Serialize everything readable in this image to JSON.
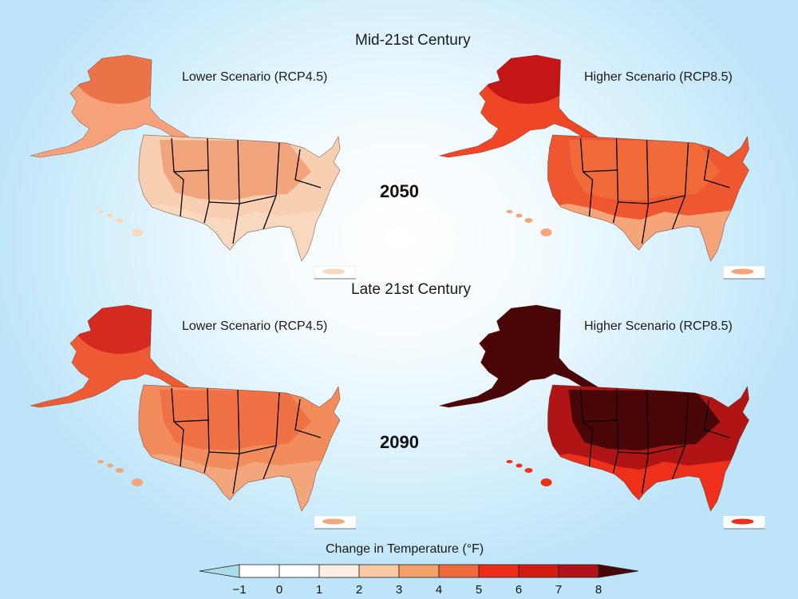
{
  "sections": [
    {
      "title": "Mid-21st Century",
      "year": "2050"
    },
    {
      "title": "Late 21st Century",
      "year": "2090"
    }
  ],
  "scenarios": {
    "lower": "Lower Scenario (RCP4.5)",
    "higher": "Higher Scenario (RCP8.5)"
  },
  "maps": [
    {
      "id": "mid-lower",
      "alaska_colors": [
        "#ea7447",
        "#f7a27a"
      ],
      "conus_colors": [
        "#f2a47c",
        "#f8cfb1",
        "#f8d8bf"
      ],
      "levels_f": [
        4,
        3,
        2
      ]
    },
    {
      "id": "mid-higher",
      "alaska_colors": [
        "#c41616",
        "#ef4626"
      ],
      "conus_colors": [
        "#f06a3a",
        "#ee5730",
        "#f6a57a"
      ],
      "levels_f": [
        5,
        5,
        3
      ]
    },
    {
      "id": "late-lower",
      "alaska_colors": [
        "#d42a20",
        "#ee5a33"
      ],
      "conus_colors": [
        "#f07145",
        "#f28c5c",
        "#f3a57c"
      ],
      "levels_f": [
        5,
        4,
        3
      ]
    },
    {
      "id": "late-higher",
      "alaska_colors": [
        "#4a0606",
        "#4a0606"
      ],
      "conus_colors": [
        "#4a0606",
        "#b01414",
        "#ee2f1c"
      ],
      "levels_f": [
        8,
        7,
        6
      ]
    }
  ],
  "legend": {
    "title": "Change in Temperature (°F)",
    "ticks": [
      "−1",
      "0",
      "1",
      "2",
      "3",
      "4",
      "5",
      "6",
      "7",
      "8"
    ],
    "colors": [
      "#a9dde8",
      "#ffffff",
      "#ffffff",
      "#fdeee4",
      "#f8c9a4",
      "#f4a06a",
      "#f06b3c",
      "#ee2c1a",
      "#d41c14",
      "#b3121a",
      "#4a0606"
    ]
  }
}
